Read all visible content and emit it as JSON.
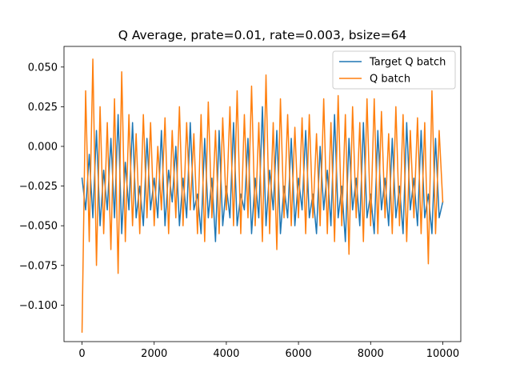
{
  "chart_data": {
    "type": "line",
    "title": "Q Average, prate=0.01, rate=0.003, bsize=64",
    "xlabel": "",
    "ylabel": "",
    "xlim": [
      -500,
      10500
    ],
    "ylim": [
      -0.123,
      0.063
    ],
    "grid": false,
    "legend_position": "upper right",
    "x_ticks": [
      0,
      2000,
      4000,
      6000,
      8000,
      10000
    ],
    "x_tick_labels": [
      "0",
      "2000",
      "4000",
      "6000",
      "8000",
      "10000"
    ],
    "y_ticks": [
      0.05,
      0.025,
      0.0,
      -0.025,
      -0.05,
      -0.075,
      -0.1
    ],
    "y_tick_labels": [
      "0.050",
      "0.025",
      "0.000",
      "−0.025",
      "−0.050",
      "−0.075",
      "−0.100"
    ],
    "x": [
      0,
      100,
      200,
      300,
      400,
      500,
      600,
      700,
      800,
      900,
      1000,
      1100,
      1200,
      1300,
      1400,
      1500,
      1600,
      1700,
      1800,
      1900,
      2000,
      2100,
      2200,
      2300,
      2400,
      2500,
      2600,
      2700,
      2800,
      2900,
      3000,
      3100,
      3200,
      3300,
      3400,
      3500,
      3600,
      3700,
      3800,
      3900,
      4000,
      4100,
      4200,
      4300,
      4400,
      4500,
      4600,
      4700,
      4800,
      4900,
      5000,
      5100,
      5200,
      5300,
      5400,
      5500,
      5600,
      5700,
      5800,
      5900,
      6000,
      6100,
      6200,
      6300,
      6400,
      6500,
      6600,
      6700,
      6800,
      6900,
      7000,
      7100,
      7200,
      7300,
      7400,
      7500,
      7600,
      7700,
      7800,
      7900,
      8000,
      8100,
      8200,
      8300,
      8400,
      8500,
      8600,
      8700,
      8800,
      8900,
      9000,
      9100,
      9200,
      9300,
      9400,
      9500,
      9600,
      9700,
      9800,
      9900,
      10000
    ],
    "series": [
      {
        "name": "Target Q batch",
        "color": "#1f77b4",
        "values": [
          -0.02,
          -0.04,
          -0.005,
          -0.045,
          0.01,
          -0.05,
          -0.015,
          -0.04,
          0.005,
          -0.045,
          0.02,
          -0.055,
          -0.01,
          -0.04,
          0.015,
          -0.045,
          -0.025,
          -0.05,
          0.005,
          -0.04,
          -0.02,
          -0.045,
          0.01,
          -0.05,
          -0.015,
          -0.035,
          0.0,
          -0.05,
          -0.02,
          -0.045,
          0.015,
          -0.04,
          -0.03,
          -0.055,
          0.005,
          -0.045,
          -0.02,
          -0.06,
          0.01,
          -0.05,
          -0.025,
          -0.045,
          0.015,
          -0.05,
          -0.03,
          -0.04,
          0.005,
          -0.055,
          -0.02,
          -0.045,
          0.025,
          -0.05,
          -0.015,
          -0.04,
          0.01,
          -0.055,
          -0.025,
          -0.045,
          0.005,
          -0.05,
          -0.02,
          -0.04,
          0.01,
          -0.045,
          -0.03,
          -0.055,
          0.0,
          -0.04,
          -0.015,
          -0.05,
          0.02,
          -0.045,
          -0.025,
          -0.06,
          0.005,
          -0.04,
          -0.02,
          -0.05,
          0.015,
          -0.045,
          -0.03,
          -0.055,
          0.01,
          -0.04,
          -0.02,
          -0.05,
          0.005,
          -0.045,
          -0.025,
          -0.055,
          0.015,
          -0.04,
          -0.02,
          -0.05,
          0.01,
          -0.045,
          -0.03,
          -0.055,
          0.005,
          -0.045,
          -0.035
        ]
      },
      {
        "name": "Q batch",
        "color": "#ff7f0e",
        "values": [
          -0.117,
          0.035,
          -0.06,
          0.055,
          -0.075,
          0.025,
          -0.055,
          0.015,
          -0.065,
          0.03,
          -0.08,
          0.047,
          -0.06,
          0.02,
          -0.05,
          0.008,
          -0.055,
          0.02,
          -0.045,
          0.015,
          -0.05,
          0.0,
          -0.04,
          0.018,
          -0.055,
          0.01,
          -0.045,
          0.025,
          -0.05,
          0.015,
          -0.04,
          0.008,
          -0.055,
          0.02,
          -0.06,
          0.028,
          -0.045,
          0.01,
          -0.055,
          0.018,
          -0.04,
          0.025,
          -0.05,
          0.035,
          -0.055,
          0.02,
          -0.045,
          0.038,
          -0.05,
          0.015,
          -0.06,
          0.045,
          -0.055,
          0.015,
          -0.065,
          0.03,
          -0.045,
          0.02,
          -0.05,
          0.012,
          -0.045,
          0.018,
          -0.055,
          0.02,
          -0.045,
          0.008,
          -0.05,
          0.03,
          -0.055,
          0.015,
          -0.06,
          0.032,
          -0.05,
          0.02,
          -0.068,
          0.025,
          -0.045,
          0.015,
          -0.06,
          0.03,
          -0.05,
          0.03,
          -0.055,
          0.022,
          -0.045,
          0.008,
          -0.055,
          0.025,
          -0.05,
          0.02,
          -0.06,
          0.01,
          -0.045,
          0.018,
          -0.055,
          0.015,
          -0.074,
          0.035,
          -0.055,
          0.01,
          -0.035
        ]
      }
    ]
  }
}
